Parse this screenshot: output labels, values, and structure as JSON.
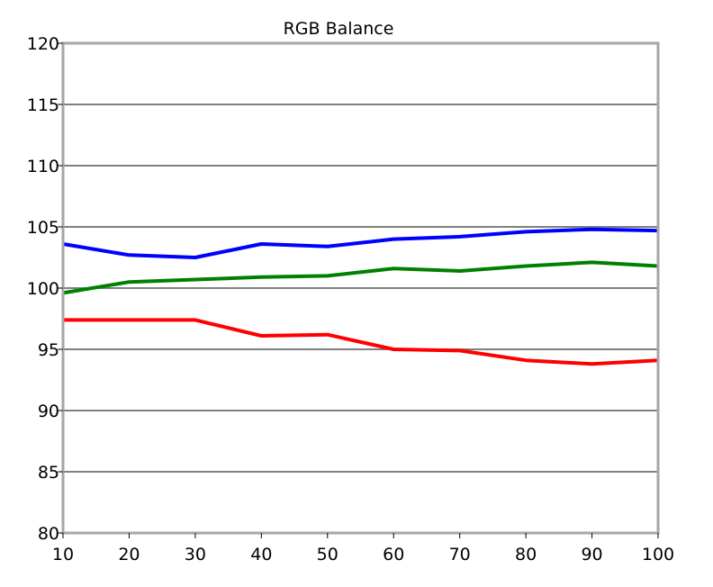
{
  "chart_data": {
    "type": "line",
    "title": "RGB Balance",
    "xlabel": "",
    "ylabel": "",
    "x": [
      10,
      20,
      30,
      40,
      50,
      60,
      70,
      80,
      90,
      100
    ],
    "xlim": [
      10,
      100
    ],
    "ylim": [
      80,
      120
    ],
    "x_ticks": [
      "10",
      "20",
      "30",
      "40",
      "50",
      "60",
      "70",
      "80",
      "90",
      "100"
    ],
    "y_ticks": [
      "80",
      "85",
      "90",
      "95",
      "100",
      "105",
      "110",
      "115",
      "120"
    ],
    "grid": "horizontal",
    "legend": "none",
    "series": [
      {
        "color": "#0000ff",
        "values": [
          103.6,
          102.7,
          102.5,
          103.6,
          103.4,
          104.0,
          104.2,
          104.6,
          104.8,
          104.7
        ]
      },
      {
        "color": "#008000",
        "values": [
          99.6,
          100.5,
          100.7,
          100.9,
          101.0,
          101.6,
          101.4,
          101.8,
          102.1,
          101.8
        ]
      },
      {
        "color": "#ff0000",
        "values": [
          97.4,
          97.4,
          97.4,
          96.1,
          96.2,
          95.0,
          94.9,
          94.1,
          93.8,
          94.1
        ]
      }
    ],
    "colors": {
      "frame": "#a6a6a6",
      "grid": "#808080",
      "text": "#000000"
    }
  }
}
